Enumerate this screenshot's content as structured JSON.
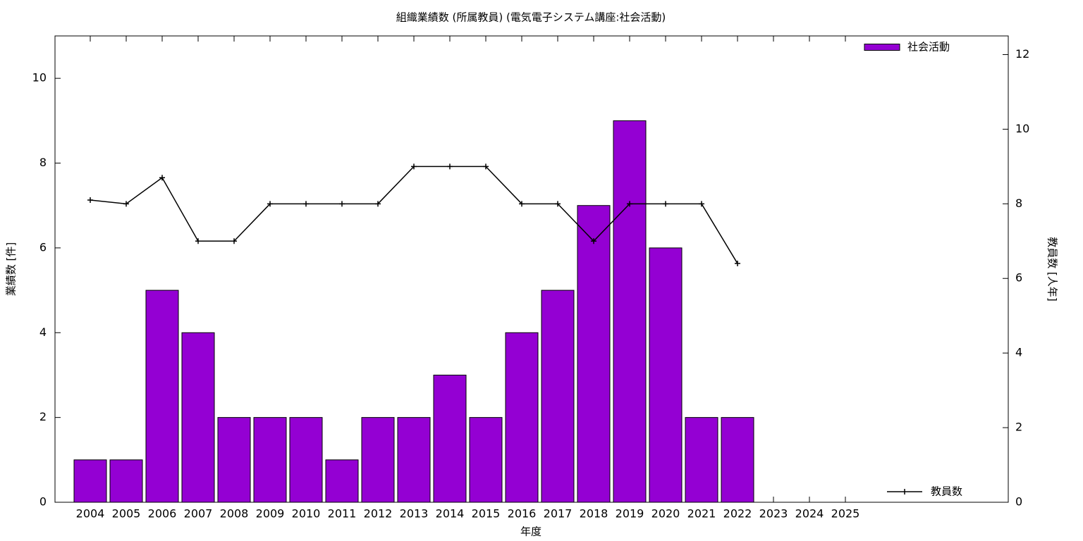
{
  "chart_data": {
    "type": "bar",
    "title": "組織業績数 (所属教員) (電気電子システム講座:社会活動)",
    "x_label": "年度",
    "y_label": "業績数 [件]",
    "y2_label": "教員数 [人年]",
    "categories": [
      "2004",
      "2005",
      "2006",
      "2007",
      "2008",
      "2009",
      "2010",
      "2011",
      "2012",
      "2013",
      "2014",
      "2015",
      "2016",
      "2017",
      "2018",
      "2019",
      "2020",
      "2021",
      "2022",
      "2023",
      "2024",
      "2025"
    ],
    "series": [
      {
        "name": "社会活動",
        "type": "bar",
        "color": "#9400d3",
        "legend": "top-right",
        "values": [
          1,
          1,
          5,
          4,
          2,
          2,
          2,
          1,
          2,
          2,
          3,
          2,
          4,
          5,
          7,
          9,
          6,
          2,
          2,
          null,
          null,
          null
        ]
      },
      {
        "name": "教員数",
        "type": "line",
        "axis": "y2",
        "color": "#000000",
        "legend": "bottom-right",
        "values": [
          8.1,
          8.0,
          8.7,
          7,
          7,
          8,
          8,
          8,
          8,
          9,
          9,
          9,
          8,
          8,
          7,
          8,
          8,
          8,
          6.4,
          null,
          null,
          null
        ]
      }
    ],
    "ylim": [
      0,
      11
    ],
    "yticks": [
      0,
      2,
      4,
      6,
      8,
      10
    ],
    "y2lim": [
      0,
      12.5
    ],
    "y2ticks": [
      0,
      2,
      4,
      6,
      8,
      10,
      12
    ]
  }
}
